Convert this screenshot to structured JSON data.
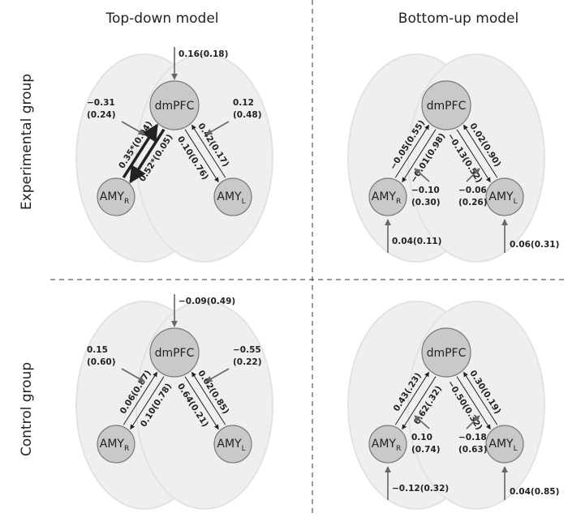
{
  "columns": [
    "Top-down model",
    "Bottom-up model"
  ],
  "rows": [
    "Experimental group",
    "Control group"
  ],
  "nodes": {
    "dmpfc": "dmPFC",
    "amy": "AMY",
    "right_sub": "R",
    "left_sub": "L"
  },
  "panels": [
    {
      "edges": [
        "0.52*(0.05)",
        "0.35*(0.04)",
        "0.42(0.17)",
        "0.10(0.76)"
      ],
      "inputs": {
        "top": "0.16(0.18)",
        "left": [
          "−0.31",
          "(0.24)"
        ],
        "right": [
          "0.12",
          "(0.48)"
        ]
      }
    },
    {
      "edges": [
        "−0.01(0.98)",
        "−0.05(0.55)",
        "0.02(0.90)",
        "−0.13(0.52)"
      ],
      "inputs": {
        "middle_left": [
          "−0.10",
          "(0.30)"
        ],
        "middle_right": [
          "−0.06",
          "(0.26)"
        ],
        "bottom_left": "0.04(0.11)",
        "bottom_right": "0.06(0.31)"
      }
    },
    {
      "edges": [
        "0.10(0.78)",
        "0.06(0.87)",
        "0.02(0.85)",
        "0.64(0.21)"
      ],
      "inputs": {
        "top": "−0.09(0.49)",
        "left": [
          "0.15",
          "(0.60)"
        ],
        "right": [
          "−0.55",
          "(0.22)"
        ]
      }
    },
    {
      "edges": [
        "0.62(.32)",
        "0.43(.23)",
        "0.30(0.19)",
        "−0.50(0.32)"
      ],
      "inputs": {
        "middle_left": [
          "0.10",
          "(0.74)"
        ],
        "middle_right": [
          "−0.18",
          "(0.63)"
        ],
        "bottom_left": "−0.12(0.32)",
        "bottom_right": "0.04(0.85)"
      }
    }
  ]
}
